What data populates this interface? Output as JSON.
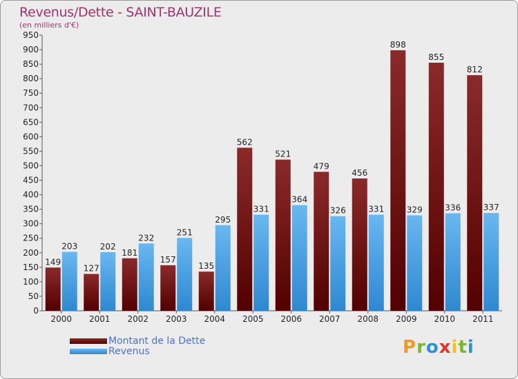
{
  "title": "Revenus/Dette - SAINT-BAUZILE",
  "subtitle": "(en milliers d'€)",
  "legend": {
    "dette": "Montant de la Dette",
    "revenus": "Revenus"
  },
  "logo": [
    "P",
    "r",
    "o",
    "x",
    "i",
    "t",
    "i"
  ],
  "colors": {
    "title": "#a0326e",
    "dette_top": "#8a2a2a",
    "dette_bottom": "#520000",
    "revenus_top": "#68b7f0",
    "revenus_bottom": "#2f88d0",
    "legend_text": "#4f6fd6"
  },
  "chart_data": {
    "type": "bar",
    "title": "Revenus/Dette - SAINT-BAUZILE",
    "subtitle": "(en milliers d'€)",
    "categories": [
      "2000",
      "2001",
      "2002",
      "2003",
      "2004",
      "2005",
      "2006",
      "2007",
      "2008",
      "2009",
      "2010",
      "2011"
    ],
    "series": [
      {
        "name": "Montant de la Dette",
        "values": [
          149,
          127,
          181,
          157,
          135,
          562,
          521,
          479,
          456,
          898,
          855,
          812
        ]
      },
      {
        "name": "Revenus",
        "values": [
          203,
          202,
          232,
          251,
          295,
          331,
          364,
          326,
          331,
          329,
          336,
          337
        ]
      }
    ],
    "ylim": [
      0,
      950
    ],
    "ytick_step": 50,
    "grid": false,
    "legend_position": "bottom-left"
  }
}
